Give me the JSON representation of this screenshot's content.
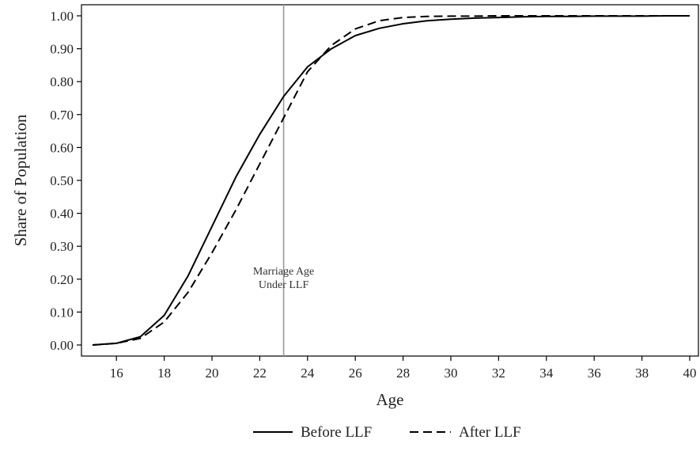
{
  "chart_data": {
    "type": "line",
    "title": "",
    "xlabel": "Age",
    "ylabel": "Share of Population",
    "xlim": [
      15,
      40
    ],
    "ylim": [
      0,
      1
    ],
    "xticks": [
      16,
      18,
      20,
      22,
      24,
      26,
      28,
      30,
      32,
      34,
      36,
      38,
      40
    ],
    "yticks": [
      0,
      0.1,
      0.2,
      0.3,
      0.4,
      0.5,
      0.6,
      0.7,
      0.8,
      0.9,
      1.0
    ],
    "xtick_labels": [
      "16",
      "18",
      "20",
      "22",
      "24",
      "26",
      "28",
      "30",
      "32",
      "34",
      "36",
      "38",
      "40"
    ],
    "ytick_labels": [
      "0.00",
      "0.10",
      "0.20",
      "0.30",
      "0.40",
      "0.50",
      "0.60",
      "0.70",
      "0.80",
      "0.90",
      "1.00"
    ],
    "grid": false,
    "legend_position": "bottom-center",
    "series": [
      {
        "name": "Before LLF",
        "style": "solid",
        "color": "#000000",
        "x": [
          15,
          16,
          17,
          18,
          19,
          20,
          21,
          22,
          23,
          24,
          25,
          26,
          27,
          28,
          29,
          30,
          31,
          32,
          33,
          34,
          35,
          36,
          37,
          38,
          39,
          40
        ],
        "y": [
          0.0,
          0.005,
          0.025,
          0.09,
          0.21,
          0.36,
          0.51,
          0.64,
          0.755,
          0.845,
          0.9,
          0.94,
          0.962,
          0.976,
          0.985,
          0.99,
          0.993,
          0.995,
          0.997,
          0.998,
          0.998,
          0.999,
          0.999,
          0.999,
          1.0,
          1.0
        ]
      },
      {
        "name": "After LLF",
        "style": "dashed",
        "color": "#000000",
        "x": [
          15,
          16,
          17,
          18,
          19,
          20,
          21,
          22,
          23,
          24,
          25,
          26,
          27,
          28,
          29,
          30,
          31,
          32,
          33,
          34,
          35,
          36,
          37,
          38,
          39,
          40
        ],
        "y": [
          0.0,
          0.005,
          0.02,
          0.07,
          0.16,
          0.28,
          0.41,
          0.55,
          0.69,
          0.83,
          0.91,
          0.96,
          0.985,
          0.995,
          0.998,
          0.999,
          0.999,
          1.0,
          1.0,
          1.0,
          1.0,
          1.0,
          1.0,
          1.0,
          1.0,
          1.0
        ]
      }
    ],
    "annotations": [
      {
        "type": "vline",
        "x": 23,
        "color": "#999999",
        "label_lines": [
          "Marriage Age",
          "Under LLF"
        ],
        "label_y": 0.2
      }
    ]
  }
}
